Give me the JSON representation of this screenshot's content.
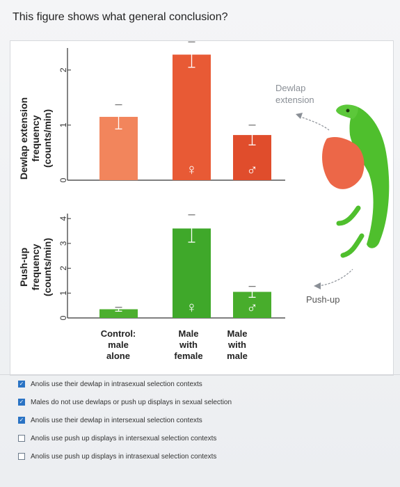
{
  "question": "This figure shows what general conclusion?",
  "chart_data": [
    {
      "type": "bar",
      "ylabel": "Dewlap extension frequency (counts/min)",
      "categories": [
        "Control: male alone",
        "Male with female",
        "Male with male"
      ],
      "values": [
        1.15,
        2.28,
        0.82
      ],
      "errors": [
        0.22,
        0.23,
        0.18
      ],
      "ylim": [
        0,
        2.4
      ],
      "yticks": [
        "0",
        "1",
        "2"
      ],
      "bar_symbols": [
        "",
        "♀",
        "♂"
      ],
      "colors": [
        "#f2855c",
        "#e85a35",
        "#e04d2c"
      ]
    },
    {
      "type": "bar",
      "ylabel": "Push-up frequency (counts/min)",
      "categories": [
        "Control: male alone",
        "Male with female",
        "Male with male"
      ],
      "values": [
        0.35,
        3.6,
        1.05
      ],
      "errors": [
        0.08,
        0.55,
        0.22
      ],
      "ylim": [
        0,
        4.2
      ],
      "yticks": [
        "0",
        "1",
        "2",
        "3",
        "4"
      ],
      "bar_symbols": [
        "",
        "♀",
        "♂"
      ],
      "colors": [
        "#4caf2e",
        "#3fa82a",
        "#48ad2c"
      ]
    }
  ],
  "category_labels": [
    [
      "Control:",
      "male",
      "alone"
    ],
    [
      "Male",
      "with",
      "female"
    ],
    [
      "Male",
      "with",
      "male"
    ]
  ],
  "annotations": {
    "dewlap": [
      "Dewlap",
      "extension"
    ],
    "pushup": "Push-up"
  },
  "options": [
    {
      "text": "Anolis use their dewlap in intrasexual selection contexts",
      "checked": true
    },
    {
      "text": "Males do not use dewlaps or push up displays in sexual selection",
      "checked": true
    },
    {
      "text": "Anolis use their dewlap in intersexual selection contexts",
      "checked": true
    },
    {
      "text": "Anolis use push up displays in intersexual selection contexts",
      "checked": false
    },
    {
      "text": "Anolis use push up displays in intrasexual selection contexts",
      "checked": false
    }
  ],
  "colors": {
    "checkbox_checked": "#2a73c4"
  }
}
